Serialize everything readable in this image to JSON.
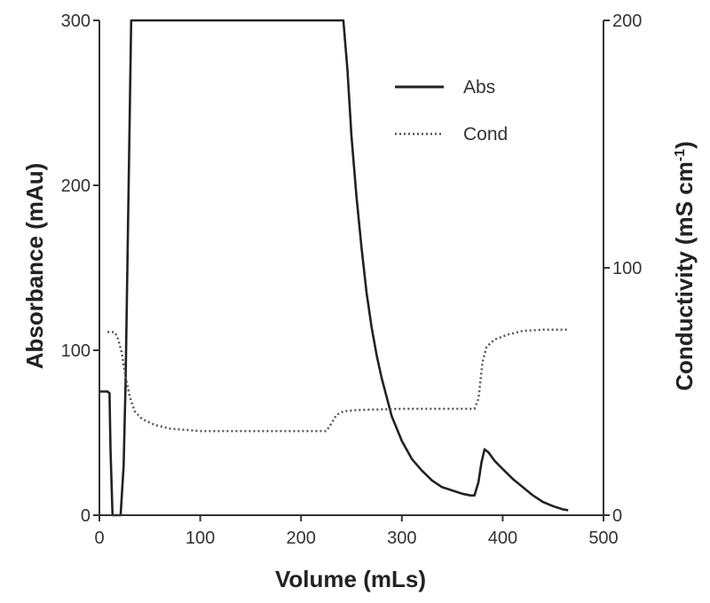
{
  "chart_data": {
    "type": "line",
    "title": "",
    "xlabel": "Volume (mLs)",
    "ylabel_left": "Absorbance (mAu)",
    "ylabel_right_main": "Conductivity (mS cm",
    "ylabel_right_sup": "-1",
    "ylabel_right_close": ")",
    "xlim": [
      0,
      500
    ],
    "ylim_left": [
      0,
      300
    ],
    "ylim_right": [
      0,
      200
    ],
    "x_ticks": [
      0,
      100,
      200,
      300,
      400,
      500
    ],
    "x_tick_labels": [
      "0",
      "100",
      "200",
      "300",
      "400",
      "500"
    ],
    "y_left_ticks": [
      0,
      100,
      200,
      300
    ],
    "y_left_tick_labels": [
      "0",
      "100",
      "200",
      "300"
    ],
    "y_right_ticks": [
      0,
      100,
      200
    ],
    "y_right_tick_labels": [
      "0",
      "100",
      "200"
    ],
    "grid": false,
    "legend_position": "top-right",
    "series": [
      {
        "name": "Abs",
        "axis": "left",
        "style": "solid",
        "color": "#222222",
        "points": [
          [
            0,
            75
          ],
          [
            8,
            75
          ],
          [
            10,
            74
          ],
          [
            11,
            40
          ],
          [
            13,
            0
          ],
          [
            21,
            0
          ],
          [
            24,
            30
          ],
          [
            26,
            80
          ],
          [
            28,
            160
          ],
          [
            30,
            240
          ],
          [
            31.5,
            300
          ],
          [
            242,
            300
          ],
          [
            246,
            270
          ],
          [
            250,
            230
          ],
          [
            255,
            193
          ],
          [
            260,
            162
          ],
          [
            265,
            135
          ],
          [
            270,
            114
          ],
          [
            275,
            97
          ],
          [
            280,
            83
          ],
          [
            290,
            60
          ],
          [
            300,
            45
          ],
          [
            310,
            34
          ],
          [
            320,
            27
          ],
          [
            330,
            21
          ],
          [
            340,
            17
          ],
          [
            350,
            15
          ],
          [
            360,
            13
          ],
          [
            368,
            12
          ],
          [
            372,
            12
          ],
          [
            376,
            20
          ],
          [
            379,
            32
          ],
          [
            382,
            40
          ],
          [
            386,
            38
          ],
          [
            392,
            33
          ],
          [
            400,
            28
          ],
          [
            410,
            22
          ],
          [
            420,
            17
          ],
          [
            430,
            12
          ],
          [
            440,
            8
          ],
          [
            450,
            5.5
          ],
          [
            460,
            3.5
          ],
          [
            465,
            3
          ]
        ]
      },
      {
        "name": "Cond",
        "axis": "right",
        "style": "dotted",
        "color": "#555555",
        "points": [
          [
            8,
            74
          ],
          [
            15,
            74
          ],
          [
            18,
            72
          ],
          [
            22,
            66
          ],
          [
            26,
            56
          ],
          [
            30,
            48
          ],
          [
            35,
            42
          ],
          [
            42,
            39
          ],
          [
            55,
            36.5
          ],
          [
            70,
            35
          ],
          [
            100,
            34
          ],
          [
            150,
            34
          ],
          [
            200,
            34
          ],
          [
            225,
            34
          ],
          [
            230,
            37
          ],
          [
            235,
            40.5
          ],
          [
            242,
            42
          ],
          [
            255,
            42.5
          ],
          [
            300,
            43
          ],
          [
            350,
            43
          ],
          [
            372,
            43
          ],
          [
            376,
            47
          ],
          [
            380,
            62
          ],
          [
            384,
            68
          ],
          [
            392,
            71
          ],
          [
            405,
            73
          ],
          [
            420,
            74.5
          ],
          [
            440,
            75
          ],
          [
            465,
            75
          ]
        ]
      }
    ]
  }
}
